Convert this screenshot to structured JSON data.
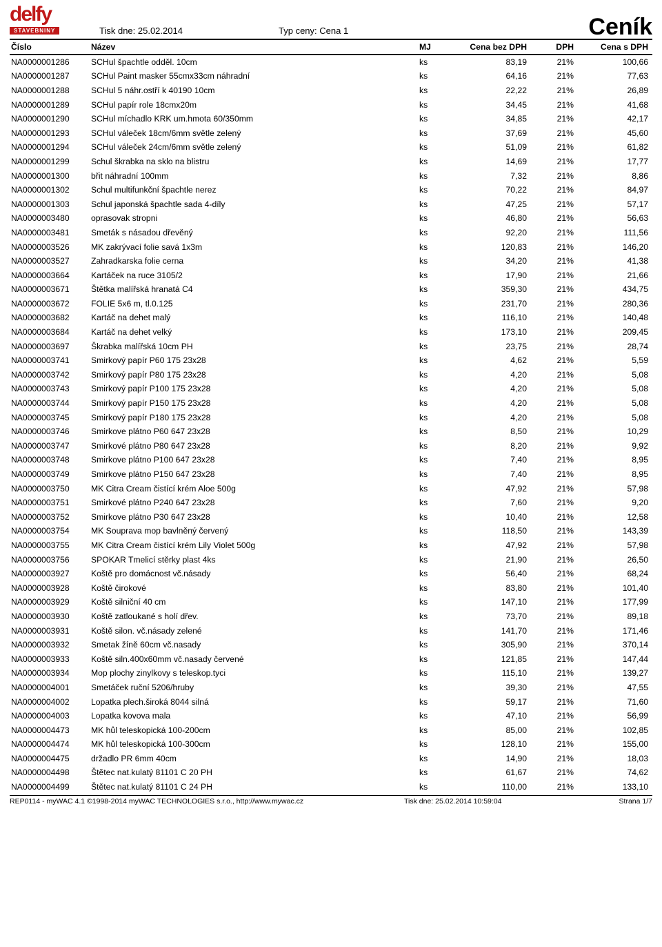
{
  "header": {
    "logo_main": "delfy",
    "logo_sub": "STAVEBNINY",
    "print_date_label": "Tisk dne: 25.02.2014",
    "price_type_label": "Typ ceny: Cena 1",
    "title": "Ceník"
  },
  "columns": {
    "cislo": "Číslo",
    "nazev": "Název",
    "mj": "MJ",
    "cena_bez": "Cena bez DPH",
    "dph": "DPH",
    "cena_s": "Cena s DPH"
  },
  "rows": [
    {
      "cislo": "NA0000001286",
      "nazev": "SCHul špachtle odděl. 10cm",
      "mj": "ks",
      "bez": "83,19",
      "dph": "21%",
      "s": "100,66"
    },
    {
      "cislo": "NA0000001287",
      "nazev": "SCHul Paint masker 55cmx33cm náhradní",
      "mj": "ks",
      "bez": "64,16",
      "dph": "21%",
      "s": "77,63"
    },
    {
      "cislo": "NA0000001288",
      "nazev": "SCHul 5 náhr.ostří k 40190 10cm",
      "mj": "ks",
      "bez": "22,22",
      "dph": "21%",
      "s": "26,89"
    },
    {
      "cislo": "NA0000001289",
      "nazev": "SCHul papír role 18cmx20m",
      "mj": "ks",
      "bez": "34,45",
      "dph": "21%",
      "s": "41,68"
    },
    {
      "cislo": "NA0000001290",
      "nazev": "SCHul míchadlo KRK um.hmota 60/350mm",
      "mj": "ks",
      "bez": "34,85",
      "dph": "21%",
      "s": "42,17"
    },
    {
      "cislo": "NA0000001293",
      "nazev": "SCHul váleček 18cm/6mm světle zelený",
      "mj": "ks",
      "bez": "37,69",
      "dph": "21%",
      "s": "45,60"
    },
    {
      "cislo": "NA0000001294",
      "nazev": "SCHul váleček 24cm/6mm světle zelený",
      "mj": "ks",
      "bez": "51,09",
      "dph": "21%",
      "s": "61,82"
    },
    {
      "cislo": "NA0000001299",
      "nazev": "Schul škrabka na sklo na blistru",
      "mj": "ks",
      "bez": "14,69",
      "dph": "21%",
      "s": "17,77"
    },
    {
      "cislo": "NA0000001300",
      "nazev": "břit náhradní 100mm",
      "mj": "ks",
      "bez": "7,32",
      "dph": "21%",
      "s": "8,86"
    },
    {
      "cislo": "NA0000001302",
      "nazev": "Schul multifunkční špachtle nerez",
      "mj": "ks",
      "bez": "70,22",
      "dph": "21%",
      "s": "84,97"
    },
    {
      "cislo": "NA0000001303",
      "nazev": "Schul japonská špachtle sada 4-díly",
      "mj": "ks",
      "bez": "47,25",
      "dph": "21%",
      "s": "57,17"
    },
    {
      "cislo": "NA0000003480",
      "nazev": "oprasovak stropni",
      "mj": "ks",
      "bez": "46,80",
      "dph": "21%",
      "s": "56,63"
    },
    {
      "cislo": "NA0000003481",
      "nazev": "Smeták s násadou dřevěný",
      "mj": "ks",
      "bez": "92,20",
      "dph": "21%",
      "s": "111,56"
    },
    {
      "cislo": "NA0000003526",
      "nazev": "MK zakrývací folie savá 1x3m",
      "mj": "ks",
      "bez": "120,83",
      "dph": "21%",
      "s": "146,20"
    },
    {
      "cislo": "NA0000003527",
      "nazev": "Zahradkarska folie cerna",
      "mj": "ks",
      "bez": "34,20",
      "dph": "21%",
      "s": "41,38"
    },
    {
      "cislo": "NA0000003664",
      "nazev": "Kartáček na ruce 3105/2",
      "mj": "ks",
      "bez": "17,90",
      "dph": "21%",
      "s": "21,66"
    },
    {
      "cislo": "NA0000003671",
      "nazev": "Štětka malířská hranatá C4",
      "mj": "ks",
      "bez": "359,30",
      "dph": "21%",
      "s": "434,75"
    },
    {
      "cislo": "NA0000003672",
      "nazev": "FOLIE 5x6 m, tl.0.125",
      "mj": "ks",
      "bez": "231,70",
      "dph": "21%",
      "s": "280,36"
    },
    {
      "cislo": "NA0000003682",
      "nazev": "Kartáč na dehet malý",
      "mj": "ks",
      "bez": "116,10",
      "dph": "21%",
      "s": "140,48"
    },
    {
      "cislo": "NA0000003684",
      "nazev": "Kartáč na dehet velký",
      "mj": "ks",
      "bez": "173,10",
      "dph": "21%",
      "s": "209,45"
    },
    {
      "cislo": "NA0000003697",
      "nazev": "Škrabka malířská 10cm PH",
      "mj": "ks",
      "bez": "23,75",
      "dph": "21%",
      "s": "28,74"
    },
    {
      "cislo": "NA0000003741",
      "nazev": "Smirkový papír P60 175 23x28",
      "mj": "ks",
      "bez": "4,62",
      "dph": "21%",
      "s": "5,59"
    },
    {
      "cislo": "NA0000003742",
      "nazev": "Smirkový papír P80 175 23x28",
      "mj": "ks",
      "bez": "4,20",
      "dph": "21%",
      "s": "5,08"
    },
    {
      "cislo": "NA0000003743",
      "nazev": "Smirkový papír P100 175 23x28",
      "mj": "ks",
      "bez": "4,20",
      "dph": "21%",
      "s": "5,08"
    },
    {
      "cislo": "NA0000003744",
      "nazev": "Smirkový papír P150 175 23x28",
      "mj": "ks",
      "bez": "4,20",
      "dph": "21%",
      "s": "5,08"
    },
    {
      "cislo": "NA0000003745",
      "nazev": "Smirkový papír P180 175 23x28",
      "mj": "ks",
      "bez": "4,20",
      "dph": "21%",
      "s": "5,08"
    },
    {
      "cislo": "NA0000003746",
      "nazev": "Smirkove plátno P60 647 23x28",
      "mj": "ks",
      "bez": "8,50",
      "dph": "21%",
      "s": "10,29"
    },
    {
      "cislo": "NA0000003747",
      "nazev": "Smirkové plátno P80 647 23x28",
      "mj": "ks",
      "bez": "8,20",
      "dph": "21%",
      "s": "9,92"
    },
    {
      "cislo": "NA0000003748",
      "nazev": "Smirkove plátno P100 647 23x28",
      "mj": "ks",
      "bez": "7,40",
      "dph": "21%",
      "s": "8,95"
    },
    {
      "cislo": "NA0000003749",
      "nazev": "Smirkove plátno P150 647 23x28",
      "mj": "ks",
      "bez": "7,40",
      "dph": "21%",
      "s": "8,95"
    },
    {
      "cislo": "NA0000003750",
      "nazev": "MK Citra Cream čistící krém Aloe 500g",
      "mj": "ks",
      "bez": "47,92",
      "dph": "21%",
      "s": "57,98"
    },
    {
      "cislo": "NA0000003751",
      "nazev": "Smirkové plátno P240 647 23x28",
      "mj": "ks",
      "bez": "7,60",
      "dph": "21%",
      "s": "9,20"
    },
    {
      "cislo": "NA0000003752",
      "nazev": "Smirkove plátno P30 647 23x28",
      "mj": "ks",
      "bez": "10,40",
      "dph": "21%",
      "s": "12,58"
    },
    {
      "cislo": "NA0000003754",
      "nazev": "MK Souprava mop bavlněný červený",
      "mj": "ks",
      "bez": "118,50",
      "dph": "21%",
      "s": "143,39"
    },
    {
      "cislo": "NA0000003755",
      "nazev": "MK Citra Cream čistící krém Lily Violet 500g",
      "mj": "ks",
      "bez": "47,92",
      "dph": "21%",
      "s": "57,98"
    },
    {
      "cislo": "NA0000003756",
      "nazev": "SPOKAR Tmelicí stěrky plast 4ks",
      "mj": "ks",
      "bez": "21,90",
      "dph": "21%",
      "s": "26,50"
    },
    {
      "cislo": "NA0000003927",
      "nazev": "Koště pro domácnost vč.násady",
      "mj": "ks",
      "bez": "56,40",
      "dph": "21%",
      "s": "68,24"
    },
    {
      "cislo": "NA0000003928",
      "nazev": "Koště čirokové",
      "mj": "ks",
      "bez": "83,80",
      "dph": "21%",
      "s": "101,40"
    },
    {
      "cislo": "NA0000003929",
      "nazev": "Koště silniční 40 cm",
      "mj": "ks",
      "bez": "147,10",
      "dph": "21%",
      "s": "177,99"
    },
    {
      "cislo": "NA0000003930",
      "nazev": "Koště zatloukané s holí dřev.",
      "mj": "ks",
      "bez": "73,70",
      "dph": "21%",
      "s": "89,18"
    },
    {
      "cislo": "NA0000003931",
      "nazev": "Koště silon. vč.násady zelené",
      "mj": "ks",
      "bez": "141,70",
      "dph": "21%",
      "s": "171,46"
    },
    {
      "cislo": "NA0000003932",
      "nazev": "Smetak žíně 60cm vč.nasady",
      "mj": "ks",
      "bez": "305,90",
      "dph": "21%",
      "s": "370,14"
    },
    {
      "cislo": "NA0000003933",
      "nazev": "Koště siln.400x60mm vč.nasady červené",
      "mj": "ks",
      "bez": "121,85",
      "dph": "21%",
      "s": "147,44"
    },
    {
      "cislo": "NA0000003934",
      "nazev": "Mop plochy zinylkovy s teleskop.tyci",
      "mj": "ks",
      "bez": "115,10",
      "dph": "21%",
      "s": "139,27"
    },
    {
      "cislo": "NA0000004001",
      "nazev": "Smetáček ruční 5206/hruby",
      "mj": "ks",
      "bez": "39,30",
      "dph": "21%",
      "s": "47,55"
    },
    {
      "cislo": "NA0000004002",
      "nazev": "Lopatka plech.široká 8044 silná",
      "mj": "ks",
      "bez": "59,17",
      "dph": "21%",
      "s": "71,60"
    },
    {
      "cislo": "NA0000004003",
      "nazev": "Lopatka kovova mala",
      "mj": "ks",
      "bez": "47,10",
      "dph": "21%",
      "s": "56,99"
    },
    {
      "cislo": "NA0000004473",
      "nazev": "MK hůl teleskopická 100-200cm",
      "mj": "ks",
      "bez": "85,00",
      "dph": "21%",
      "s": "102,85"
    },
    {
      "cislo": "NA0000004474",
      "nazev": "MK hůl teleskopická 100-300cm",
      "mj": "ks",
      "bez": "128,10",
      "dph": "21%",
      "s": "155,00"
    },
    {
      "cislo": "NA0000004475",
      "nazev": "držadlo PR 6mm 40cm",
      "mj": "ks",
      "bez": "14,90",
      "dph": "21%",
      "s": "18,03"
    },
    {
      "cislo": "NA0000004498",
      "nazev": "Štětec nat.kulatý 81101 C 20 PH",
      "mj": "ks",
      "bez": "61,67",
      "dph": "21%",
      "s": "74,62"
    },
    {
      "cislo": "NA0000004499",
      "nazev": "Štětec nat.kulatý 81101 C 24 PH",
      "mj": "ks",
      "bez": "110,00",
      "dph": "21%",
      "s": "133,10"
    }
  ],
  "footer": {
    "left": "REP0114 - myWAC 4.1 ©1998-2014 myWAC TECHNOLOGIES s.r.o., http://www.mywac.cz",
    "center": "Tisk dne: 25.02.2014 10:59:04",
    "right": "Strana 1/7"
  }
}
